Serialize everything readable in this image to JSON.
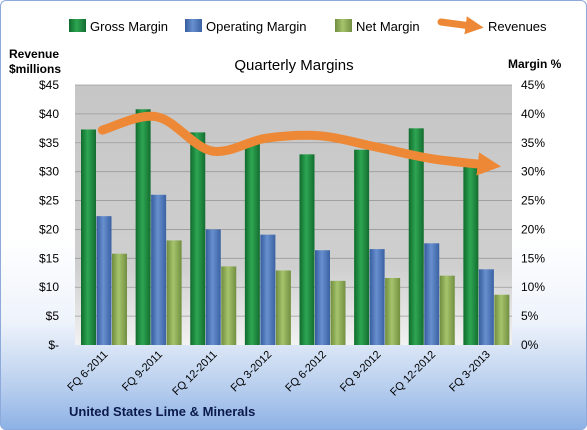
{
  "chart_data": {
    "type": "bar",
    "title": "Quarterly Margins",
    "left_axis_title_line1": "Revenue",
    "left_axis_title_line2": "$millions",
    "right_axis_title": "Margin %",
    "footer": "United States Lime & Minerals",
    "categories": [
      "FQ 6-2011",
      "FQ 9-2011",
      "FQ 12-2011",
      "FQ 3-2012",
      "FQ 6-2012",
      "FQ 9-2012",
      "FQ 12-2012",
      "FQ 3-2013"
    ],
    "left_ticks": [
      "$-",
      "$5",
      "$10",
      "$15",
      "$20",
      "$25",
      "$30",
      "$35",
      "$40",
      "$45"
    ],
    "right_ticks": [
      "0%",
      "5%",
      "10%",
      "15%",
      "20%",
      "25%",
      "30%",
      "35%",
      "40%",
      "45%"
    ],
    "left_ylim": [
      0,
      45
    ],
    "right_ylim": [
      0,
      45
    ],
    "legend_position": "top",
    "series": [
      {
        "name": "Gross Margin",
        "type": "bar",
        "color": "#1e8a3c",
        "axis": "right",
        "values": [
          37.3,
          40.8,
          36.8,
          35.5,
          33.0,
          33.8,
          37.5,
          31.5
        ]
      },
      {
        "name": "Operating Margin",
        "type": "bar",
        "color": "#4f77b8",
        "axis": "right",
        "values": [
          22.3,
          26.0,
          20.0,
          19.1,
          16.4,
          16.6,
          17.6,
          13.1
        ]
      },
      {
        "name": "Net Margin",
        "type": "bar",
        "color": "#8fb05a",
        "axis": "right",
        "values": [
          15.8,
          18.1,
          13.6,
          12.9,
          11.1,
          11.6,
          12.0,
          8.7
        ]
      },
      {
        "name": "Revenues",
        "type": "line",
        "color": "#ed8936",
        "axis": "left",
        "values": [
          37.2,
          39.5,
          33.6,
          35.8,
          36.2,
          34.3,
          32.3,
          31.2
        ]
      }
    ]
  }
}
